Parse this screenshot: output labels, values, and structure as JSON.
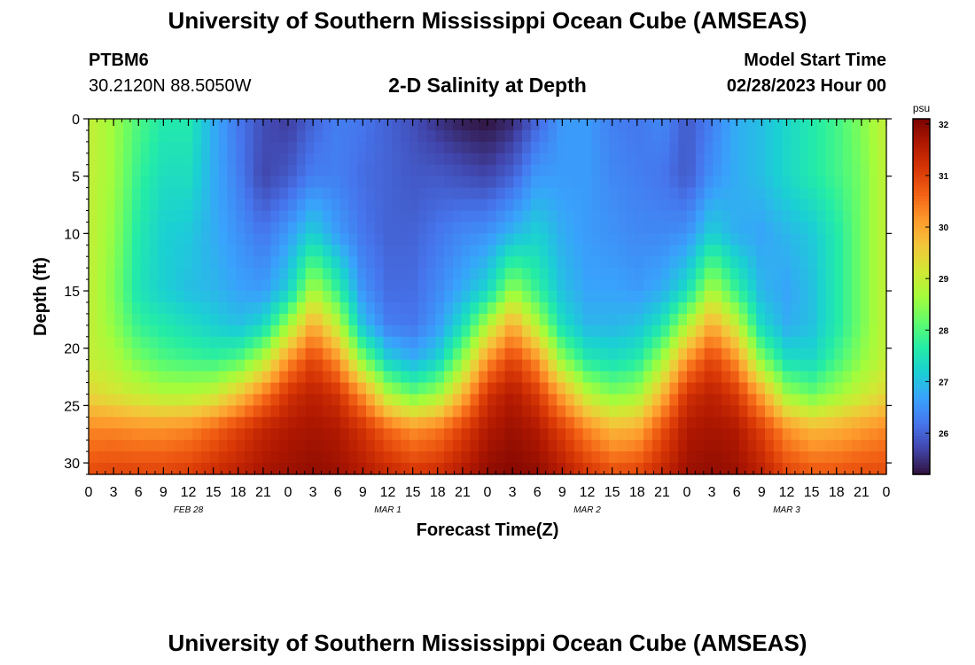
{
  "page": {
    "title": "University of Southern Mississippi Ocean Cube (AMSEAS)",
    "title_repeat": "University of Southern Mississippi Ocean Cube (AMSEAS)",
    "station_id": "PTBM6",
    "station_coords": "30.2120N  88.5050W",
    "plot_title": "2-D Salinity at Depth",
    "model_start_label": "Model Start Time",
    "model_start_value": "02/28/2023 Hour 00"
  },
  "chart_data": {
    "type": "heatmap",
    "title": "2-D Salinity at Depth",
    "xlabel": "Forecast Time(Z)",
    "ylabel": "Depth (ft)",
    "x_range_hours": [
      0,
      96
    ],
    "x_ticks": [
      "0",
      "3",
      "6",
      "9",
      "12",
      "15",
      "18",
      "21",
      "0",
      "3",
      "6",
      "9",
      "12",
      "15",
      "18",
      "21",
      "0",
      "3",
      "6",
      "9",
      "12",
      "15",
      "18",
      "21",
      "0",
      "3",
      "6",
      "9",
      "12",
      "15",
      "18",
      "21",
      "0"
    ],
    "date_labels": [
      {
        "text": "FEB 28",
        "hour": 12
      },
      {
        "text": "MAR 1",
        "hour": 36
      },
      {
        "text": "MAR 2",
        "hour": 60
      },
      {
        "text": "MAR 3",
        "hour": 84
      }
    ],
    "y_range_ft": [
      0,
      31
    ],
    "y_ticks": [
      0,
      5,
      10,
      15,
      20,
      25,
      30
    ],
    "colorbar": {
      "unit": "psu",
      "min": 25.2,
      "max": 32.1,
      "ticks": [
        26,
        27,
        28,
        29,
        30,
        31,
        32
      ],
      "colors": [
        "#30123b",
        "#4145ab",
        "#4675ed",
        "#39a2fc",
        "#1bcfd4",
        "#24eca6",
        "#61fc6c",
        "#a4fc3b",
        "#d1e834",
        "#f3c63a",
        "#fe9b2d",
        "#f36315",
        "#d93806",
        "#b11901",
        "#7a0402"
      ]
    },
    "salinity_grid": {
      "hours": [
        0,
        3,
        6,
        9,
        12,
        15,
        18,
        21,
        24,
        27,
        30,
        33,
        36,
        39,
        42,
        45,
        48,
        51,
        54,
        57,
        60,
        63,
        66,
        69,
        72,
        75,
        78,
        81,
        84,
        87,
        90,
        93,
        96
      ],
      "depths_ft": [
        0,
        5,
        10,
        15,
        18,
        21,
        24,
        27,
        31
      ],
      "values_psu": [
        [
          29.0,
          28.6,
          28.0,
          27.6,
          27.6,
          26.8,
          26.2,
          25.8,
          25.6,
          26.0,
          26.3,
          26.2,
          26.0,
          25.8,
          25.5,
          25.3,
          25.2,
          25.4,
          26.0,
          26.6,
          26.6,
          26.3,
          26.2,
          26.4,
          25.9,
          26.3,
          26.8,
          27.0,
          27.3,
          27.6,
          27.9,
          28.4,
          29.0
        ],
        [
          29.0,
          28.6,
          27.8,
          27.4,
          27.4,
          26.8,
          26.3,
          25.7,
          25.9,
          26.3,
          26.3,
          26.1,
          26.0,
          25.9,
          25.9,
          25.8,
          25.7,
          26.0,
          26.6,
          26.6,
          26.6,
          26.4,
          26.3,
          26.2,
          25.9,
          26.5,
          26.8,
          27.0,
          27.3,
          27.6,
          27.9,
          28.3,
          29.0
        ],
        [
          29.0,
          28.5,
          27.6,
          27.2,
          27.1,
          26.8,
          26.5,
          26.2,
          26.6,
          27.2,
          26.6,
          26.2,
          26.0,
          26.0,
          26.2,
          26.4,
          26.5,
          26.9,
          27.2,
          26.8,
          26.6,
          26.5,
          26.4,
          26.4,
          26.5,
          27.2,
          26.8,
          26.7,
          26.9,
          27.1,
          27.6,
          28.3,
          29.0
        ],
        [
          29.0,
          28.4,
          27.5,
          27.2,
          27.0,
          26.9,
          26.7,
          26.6,
          27.2,
          28.8,
          27.8,
          26.5,
          26.1,
          26.1,
          26.4,
          26.8,
          27.3,
          28.6,
          27.8,
          27.0,
          26.7,
          26.7,
          26.6,
          26.8,
          27.4,
          28.8,
          27.8,
          26.9,
          26.7,
          27.0,
          27.6,
          28.3,
          29.0
        ],
        [
          29.0,
          28.5,
          27.8,
          27.6,
          27.4,
          27.2,
          27.0,
          27.3,
          28.6,
          30.0,
          28.9,
          27.0,
          26.3,
          26.2,
          26.6,
          27.4,
          28.8,
          30.0,
          28.8,
          27.4,
          26.9,
          26.9,
          27.0,
          27.5,
          28.8,
          30.0,
          29.0,
          27.3,
          26.8,
          27.0,
          27.6,
          28.3,
          29.0
        ],
        [
          29.0,
          28.8,
          28.3,
          28.0,
          27.9,
          27.8,
          28.0,
          28.8,
          30.2,
          31.0,
          30.2,
          28.4,
          27.2,
          26.8,
          27.2,
          28.5,
          30.2,
          31.0,
          30.2,
          28.5,
          27.6,
          27.4,
          27.6,
          28.6,
          30.2,
          31.0,
          30.2,
          28.4,
          27.4,
          27.3,
          27.9,
          28.5,
          29.0
        ],
        [
          29.4,
          29.2,
          29.0,
          28.8,
          28.8,
          29.0,
          29.6,
          30.4,
          31.2,
          31.5,
          31.2,
          30.2,
          28.8,
          28.2,
          28.6,
          29.8,
          31.2,
          31.6,
          31.1,
          30.0,
          28.9,
          28.4,
          28.6,
          29.8,
          31.2,
          31.5,
          31.1,
          30.0,
          28.6,
          28.2,
          28.6,
          29.0,
          29.4
        ],
        [
          30.3,
          30.3,
          30.2,
          30.2,
          30.3,
          30.6,
          31.0,
          31.4,
          31.6,
          31.7,
          31.6,
          31.2,
          30.6,
          30.2,
          30.4,
          31.0,
          31.6,
          31.8,
          31.6,
          31.0,
          30.3,
          29.8,
          29.9,
          30.8,
          31.6,
          31.7,
          31.6,
          31.0,
          30.2,
          29.8,
          29.9,
          30.1,
          30.3
        ],
        [
          30.9,
          31.0,
          31.0,
          31.0,
          31.1,
          31.3,
          31.5,
          31.7,
          31.8,
          31.9,
          31.8,
          31.6,
          31.4,
          31.2,
          31.3,
          31.6,
          31.9,
          32.0,
          31.9,
          31.6,
          31.2,
          30.9,
          31.0,
          31.4,
          31.8,
          31.9,
          31.8,
          31.5,
          31.0,
          30.8,
          30.8,
          30.9,
          30.9
        ]
      ]
    }
  }
}
